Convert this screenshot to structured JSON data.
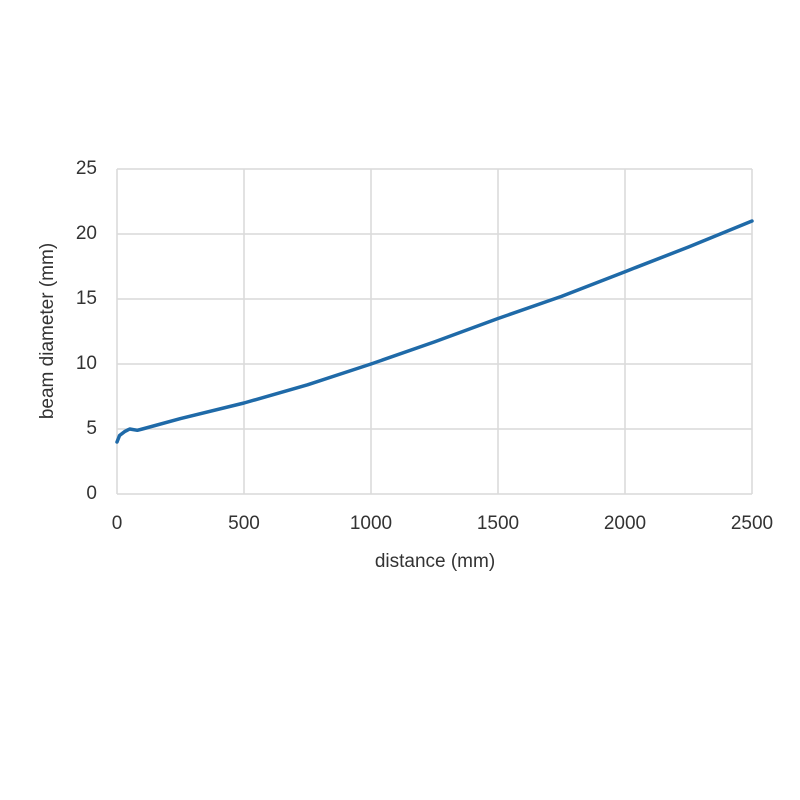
{
  "chart_data": {
    "type": "line",
    "xlabel": "distance (mm)",
    "ylabel": "beam diameter (mm)",
    "series": [
      {
        "color": "#1f6aa8",
        "x": [
          0,
          10,
          30,
          50,
          80,
          100,
          250,
          500,
          750,
          1000,
          1250,
          1500,
          1750,
          2000,
          2250,
          2500
        ],
        "values": [
          4.0,
          4.5,
          4.8,
          5.0,
          4.9,
          5.0,
          5.8,
          7.0,
          8.4,
          10.0,
          11.7,
          13.5,
          15.2,
          17.1,
          19.0,
          21.0
        ]
      }
    ],
    "xlim": [
      0,
      2500
    ],
    "xticks": [
      0,
      500,
      1000,
      1500,
      2000,
      2500
    ],
    "ylim": [
      0,
      25
    ],
    "yticks": [
      0,
      5,
      10,
      15,
      20,
      25
    ],
    "grid": true
  }
}
